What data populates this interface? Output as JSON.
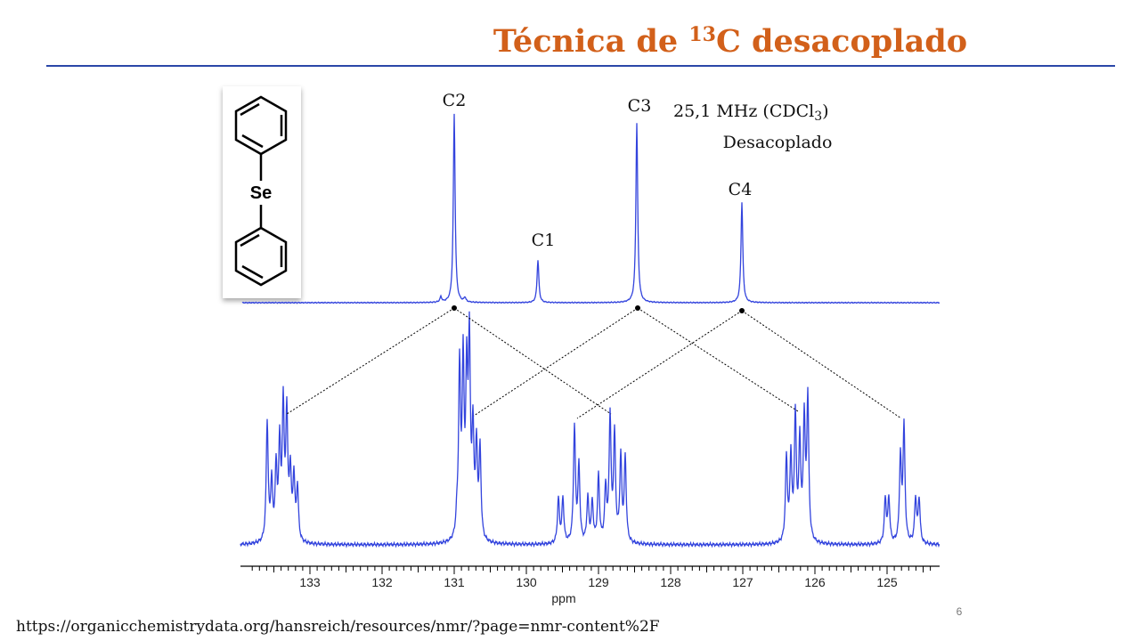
{
  "header": {
    "title_prefix": "Técnica de ",
    "title_superscript": "13",
    "title_suffix": "C desacoplado"
  },
  "figure": {
    "molecule_atom": "Se",
    "peak_labels": [
      "C2",
      "C1",
      "C3",
      "C4"
    ],
    "frequency_prefix": "25,1 MHz (CDCl",
    "frequency_subscript": "3",
    "frequency_suffix": ")",
    "mode": "Desacoplado",
    "axis_ticks": [
      "133",
      "132",
      "131",
      "130",
      "129",
      "128",
      "127",
      "126",
      "125"
    ],
    "axis_label": "ppm"
  },
  "footer": {
    "page_number": "6",
    "source_url": "https://organicchemistrydata.org/hansreich/resources/nmr/?page=nmr-content%2F"
  }
}
